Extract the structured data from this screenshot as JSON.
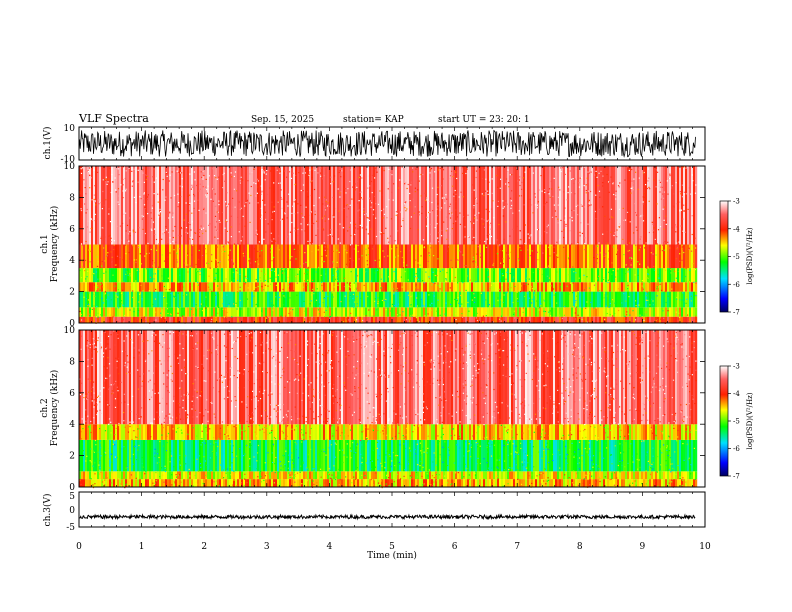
{
  "header": {
    "title": "VLF Spectra",
    "date": "Sep. 15, 2025",
    "station": "station= KAP",
    "start": "start  UT  =   23: 20: 1"
  },
  "chart_data": [
    {
      "type": "line",
      "name": "ch1-waveform",
      "ylabel": "ch.1(V)",
      "ylim": [
        -10,
        10
      ],
      "yticks": [
        "10",
        "-10"
      ],
      "x_range_min": [
        0,
        9.85
      ],
      "amplitude_v": [
        -8,
        8
      ]
    },
    {
      "type": "heatmap",
      "name": "ch1-spectrogram",
      "ylabel": "ch.1\nFrequency (kHz)",
      "ylim": [
        0,
        10
      ],
      "yticks": [
        "0",
        "2",
        "4",
        "6",
        "8",
        "10"
      ],
      "x_range_min": [
        0,
        9.85
      ],
      "bands_khz": [
        {
          "from": 0.0,
          "to": 0.4,
          "level": -3.9
        },
        {
          "from": 0.4,
          "to": 1.0,
          "level": -4.7
        },
        {
          "from": 1.0,
          "to": 2.0,
          "level": -5.2
        },
        {
          "from": 2.0,
          "to": 2.6,
          "level": -4.4
        },
        {
          "from": 2.6,
          "to": 3.5,
          "level": -5.0
        },
        {
          "from": 3.5,
          "to": 5.0,
          "level": -4.2
        },
        {
          "from": 5.0,
          "to": 10.0,
          "level": -3.5
        }
      ],
      "colorbar": {
        "label": "log(PSD)(V²/Hz)",
        "ticks": [
          "-3",
          "-4",
          "-5",
          "-6",
          "-7"
        ],
        "range": [
          -7,
          -3
        ]
      }
    },
    {
      "type": "heatmap",
      "name": "ch2-spectrogram",
      "ylabel": "ch.2\nFrequency (kHz)",
      "ylim": [
        0,
        10
      ],
      "yticks": [
        "0",
        "2",
        "4",
        "6",
        "8",
        "10"
      ],
      "x_range_min": [
        0,
        9.85
      ],
      "bands_khz": [
        {
          "from": 0.0,
          "to": 0.5,
          "level": -4.4
        },
        {
          "from": 0.5,
          "to": 1.0,
          "level": -4.6
        },
        {
          "from": 1.0,
          "to": 3.0,
          "level": -5.3
        },
        {
          "from": 3.0,
          "to": 4.0,
          "level": -4.5
        },
        {
          "from": 4.0,
          "to": 10.0,
          "level": -3.5
        }
      ],
      "colorbar": {
        "label": "log(PSD)(V²/Hz)",
        "ticks": [
          "-3",
          "-4",
          "-5",
          "-6",
          "-7"
        ],
        "range": [
          -7,
          -3
        ]
      }
    },
    {
      "type": "line",
      "name": "ch3-waveform",
      "ylabel": "ch.3(V)",
      "ylim": [
        -5,
        5
      ],
      "yticks": [
        "5",
        "0",
        "-5"
      ],
      "x_range_min": [
        0,
        9.85
      ],
      "amplitude_v": [
        -2.6,
        -1.6
      ]
    }
  ],
  "xaxis": {
    "label": "Time (min)",
    "range": [
      0,
      10
    ],
    "ticks": [
      "0",
      "1",
      "2",
      "3",
      "4",
      "5",
      "6",
      "7",
      "8",
      "9",
      "10"
    ]
  }
}
